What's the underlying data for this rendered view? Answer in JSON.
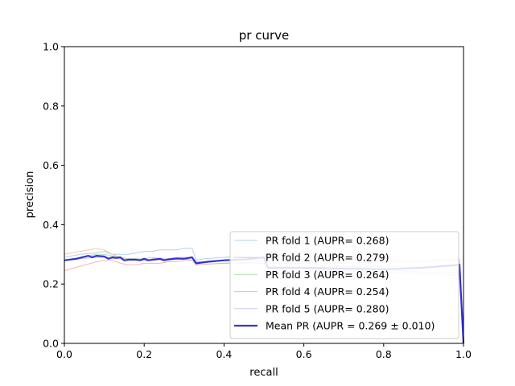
{
  "chart_data": {
    "type": "line",
    "title": "pr curve",
    "xlabel": "recall",
    "ylabel": "precision",
    "xlim": [
      0.0,
      1.0
    ],
    "ylim": [
      0.0,
      1.0
    ],
    "xticks": [
      "0.0",
      "0.2",
      "0.4",
      "0.6",
      "0.8",
      "1.0"
    ],
    "yticks": [
      "0.0",
      "0.2",
      "0.4",
      "0.6",
      "0.8",
      "1.0"
    ],
    "grid": false,
    "legend_position": "lower-right",
    "series": [
      {
        "name": "PR fold 1 (AUPR= 0.268)",
        "color": "#a6c8e6",
        "x": [
          0.0,
          0.04,
          0.08,
          0.1,
          0.12,
          0.14,
          0.16,
          0.18,
          0.2,
          0.22,
          0.24,
          0.26,
          0.28,
          0.3,
          0.32,
          0.33,
          0.35,
          0.4,
          0.45,
          0.5,
          0.51,
          0.6,
          0.7,
          0.8,
          0.9,
          0.99,
          1.0
        ],
        "y": [
          0.29,
          0.3,
          0.305,
          0.31,
          0.3,
          0.3,
          0.3,
          0.305,
          0.31,
          0.31,
          0.315,
          0.315,
          0.315,
          0.32,
          0.32,
          0.28,
          0.285,
          0.29,
          0.295,
          0.29,
          0.27,
          0.27,
          0.26,
          0.25,
          0.24,
          0.24,
          0.0
        ]
      },
      {
        "name": "PR fold 2 (AUPR= 0.279)",
        "color": "#f3c0a0",
        "x": [
          0.0,
          0.04,
          0.08,
          0.1,
          0.12,
          0.14,
          0.16,
          0.18,
          0.2,
          0.22,
          0.24,
          0.26,
          0.28,
          0.3,
          0.32,
          0.33,
          0.4,
          0.5,
          0.51,
          0.6,
          0.7,
          0.8,
          0.9,
          0.99,
          1.0
        ],
        "y": [
          0.3,
          0.31,
          0.32,
          0.315,
          0.3,
          0.29,
          0.285,
          0.285,
          0.28,
          0.28,
          0.28,
          0.285,
          0.29,
          0.29,
          0.29,
          0.27,
          0.28,
          0.285,
          0.275,
          0.275,
          0.28,
          0.28,
          0.28,
          0.285,
          0.0
        ]
      },
      {
        "name": "PR fold 3 (AUPR= 0.264)",
        "color": "#a8dca2",
        "x": [
          0.0,
          0.04,
          0.08,
          0.1,
          0.12,
          0.14,
          0.16,
          0.18,
          0.2,
          0.22,
          0.24,
          0.26,
          0.28,
          0.3,
          0.32,
          0.33,
          0.4,
          0.5,
          0.51,
          0.6,
          0.7,
          0.8,
          0.9,
          0.99,
          1.0
        ],
        "y": [
          0.28,
          0.29,
          0.3,
          0.3,
          0.295,
          0.29,
          0.285,
          0.285,
          0.285,
          0.29,
          0.285,
          0.28,
          0.285,
          0.285,
          0.28,
          0.265,
          0.27,
          0.275,
          0.255,
          0.255,
          0.26,
          0.26,
          0.255,
          0.26,
          0.0
        ]
      },
      {
        "name": "PR fold 4 (AUPR= 0.254)",
        "color": "#f0aaa4",
        "x": [
          0.0,
          0.04,
          0.08,
          0.1,
          0.12,
          0.14,
          0.16,
          0.18,
          0.2,
          0.22,
          0.24,
          0.26,
          0.28,
          0.3,
          0.32,
          0.33,
          0.4,
          0.5,
          0.51,
          0.6,
          0.7,
          0.8,
          0.9,
          0.99,
          1.0
        ],
        "y": [
          0.245,
          0.26,
          0.275,
          0.28,
          0.28,
          0.27,
          0.265,
          0.265,
          0.27,
          0.27,
          0.27,
          0.275,
          0.275,
          0.28,
          0.28,
          0.265,
          0.27,
          0.27,
          0.25,
          0.25,
          0.245,
          0.24,
          0.235,
          0.23,
          0.0
        ]
      },
      {
        "name": "PR fold 5 (AUPR= 0.280)",
        "color": "#c8c0f0",
        "x": [
          0.0,
          0.04,
          0.08,
          0.1,
          0.12,
          0.14,
          0.16,
          0.18,
          0.2,
          0.22,
          0.24,
          0.26,
          0.28,
          0.3,
          0.32,
          0.33,
          0.4,
          0.5,
          0.51,
          0.6,
          0.7,
          0.8,
          0.9,
          0.99,
          1.0
        ],
        "y": [
          0.28,
          0.285,
          0.29,
          0.29,
          0.285,
          0.285,
          0.28,
          0.28,
          0.28,
          0.28,
          0.285,
          0.285,
          0.285,
          0.29,
          0.29,
          0.275,
          0.28,
          0.28,
          0.27,
          0.27,
          0.27,
          0.275,
          0.275,
          0.28,
          0.0
        ]
      },
      {
        "name": "Mean PR (AUPR = 0.269 ± 0.010)",
        "color": "#1f1fd6",
        "bold": true,
        "x": [
          0.0,
          0.03,
          0.06,
          0.07,
          0.08,
          0.1,
          0.11,
          0.12,
          0.13,
          0.14,
          0.15,
          0.16,
          0.18,
          0.19,
          0.2,
          0.21,
          0.22,
          0.24,
          0.25,
          0.26,
          0.28,
          0.3,
          0.32,
          0.33,
          0.36,
          0.4,
          0.45,
          0.5,
          0.51,
          0.6,
          0.7,
          0.8,
          0.9,
          0.99,
          1.0
        ],
        "y": [
          0.28,
          0.285,
          0.295,
          0.29,
          0.295,
          0.293,
          0.285,
          0.29,
          0.288,
          0.29,
          0.28,
          0.282,
          0.282,
          0.28,
          0.285,
          0.28,
          0.282,
          0.285,
          0.28,
          0.283,
          0.286,
          0.285,
          0.29,
          0.27,
          0.275,
          0.28,
          0.283,
          0.29,
          0.255,
          0.255,
          0.252,
          0.25,
          0.255,
          0.265,
          0.0
        ]
      }
    ]
  }
}
